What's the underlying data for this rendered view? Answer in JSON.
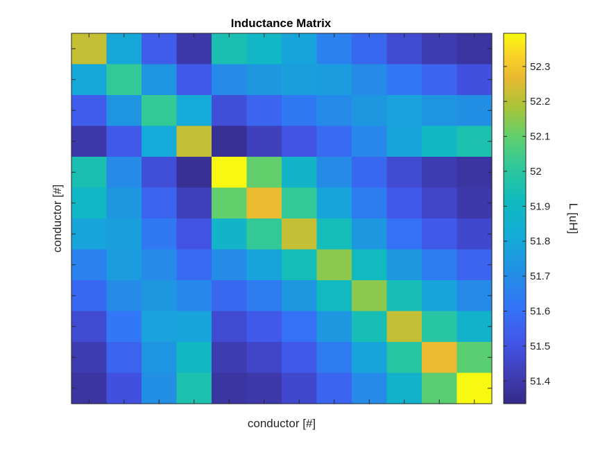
{
  "chart_data": {
    "type": "heatmap",
    "title": "Inductance Matrix",
    "xlabel": "conductor [#]",
    "ylabel": "conductor [#]",
    "x_tick_labels_shown": false,
    "y_tick_labels_shown": false,
    "grid": false,
    "colormap": "parula",
    "clim": [
      51.335,
      52.395
    ],
    "colorbar": {
      "label": "L [uH]",
      "ticks": [
        51.4,
        51.5,
        51.6,
        51.7,
        51.8,
        51.9,
        52.0,
        52.1,
        52.2,
        52.3
      ],
      "tick_labels": [
        "51.4",
        "51.5",
        "51.6",
        "51.7",
        "51.8",
        "51.9",
        "52",
        "52.1",
        "52.2",
        "52.3"
      ]
    },
    "rows": 12,
    "cols": 12,
    "values": [
      [
        52.22,
        51.8,
        51.53,
        51.4,
        51.95,
        51.89,
        51.79,
        51.66,
        51.57,
        51.47,
        51.41,
        51.38
      ],
      [
        51.8,
        52.02,
        51.73,
        51.52,
        51.69,
        51.74,
        51.77,
        51.76,
        51.7,
        51.62,
        51.56,
        51.49
      ],
      [
        51.53,
        51.73,
        52.02,
        51.81,
        51.48,
        51.56,
        51.63,
        51.69,
        51.74,
        51.78,
        51.73,
        51.71
      ],
      [
        51.4,
        51.52,
        51.81,
        52.22,
        51.36,
        51.43,
        51.5,
        51.58,
        51.68,
        51.79,
        51.9,
        51.96
      ],
      [
        51.95,
        51.69,
        51.48,
        51.36,
        52.39,
        52.1,
        51.88,
        51.7,
        51.57,
        51.47,
        51.41,
        51.38
      ],
      [
        51.89,
        51.74,
        51.56,
        51.43,
        52.1,
        52.27,
        52.02,
        51.79,
        51.64,
        51.52,
        51.45,
        51.4
      ],
      [
        51.79,
        51.77,
        51.63,
        51.5,
        51.88,
        52.02,
        52.22,
        51.93,
        51.74,
        51.6,
        51.52,
        51.46
      ],
      [
        51.66,
        51.76,
        51.69,
        51.58,
        51.7,
        51.79,
        51.93,
        52.15,
        51.91,
        51.74,
        51.64,
        51.56
      ],
      [
        51.57,
        51.7,
        51.74,
        51.68,
        51.57,
        51.64,
        51.74,
        51.91,
        52.15,
        51.94,
        51.79,
        51.69
      ],
      [
        51.47,
        51.62,
        51.78,
        51.79,
        51.47,
        51.52,
        51.6,
        51.74,
        51.94,
        52.22,
        51.99,
        51.86
      ],
      [
        51.41,
        51.56,
        51.73,
        51.9,
        51.41,
        51.45,
        51.52,
        51.64,
        51.79,
        51.99,
        52.27,
        52.09
      ],
      [
        51.38,
        51.49,
        51.71,
        51.96,
        51.38,
        51.4,
        51.46,
        51.56,
        51.69,
        51.86,
        52.09,
        52.39
      ]
    ]
  }
}
